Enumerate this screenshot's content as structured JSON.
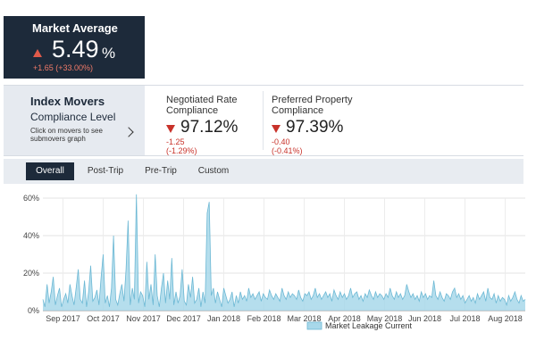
{
  "market_average": {
    "label": "Market Average",
    "value": "5.49",
    "unit": "%",
    "delta": "+1.65 (+33.00%)",
    "trend": "up"
  },
  "index_movers": {
    "title": "Index Movers",
    "subtitle": "Compliance Level",
    "hint": "Click on movers to see submovers graph",
    "icon": "chevron-right-icon"
  },
  "metrics": [
    {
      "name": "Negotiated Rate Compliance",
      "value": "97.12%",
      "delta": "-1.25 (-1.29%)",
      "trend": "down"
    },
    {
      "name": "Preferred Property Compliance",
      "value": "97.39%",
      "delta": "-0.40 (-0.41%)",
      "trend": "down"
    }
  ],
  "tabs": [
    {
      "label": "Overall",
      "active": true
    },
    {
      "label": "Post-Trip",
      "active": false
    },
    {
      "label": "Pre-Trip",
      "active": false
    },
    {
      "label": "Custom",
      "active": false
    }
  ],
  "colors": {
    "dark": "#1d2a3a",
    "up": "#e05a4a",
    "down": "#c8322a",
    "series_fill": "#a8d8ea",
    "series_line": "#6cb8d4"
  },
  "chart_data": {
    "type": "area",
    "title": "",
    "xlabel": "",
    "ylabel": "",
    "ylim": [
      0,
      60
    ],
    "y_ticks": [
      "0%",
      "20%",
      "40%",
      "60%"
    ],
    "y_tick_values": [
      0,
      20,
      40,
      60
    ],
    "x_ticks": [
      "Sep 2017",
      "Oct 2017",
      "Nov 2017",
      "Dec 2017",
      "Jan 2018",
      "Feb 2018",
      "Mar 2018",
      "Apr 2018",
      "May 2018",
      "Jun 2018",
      "Jul 2018",
      "Aug 2018"
    ],
    "legend": [
      "Market Leakage Current"
    ],
    "legend_position": "bottom",
    "grid": true,
    "series": [
      {
        "name": "Market Leakage Current",
        "values": [
          6,
          2,
          14,
          4,
          10,
          18,
          3,
          8,
          12,
          2,
          6,
          9,
          4,
          14,
          8,
          3,
          12,
          22,
          6,
          4,
          16,
          2,
          10,
          24,
          5,
          7,
          11,
          3,
          18,
          30,
          4,
          8,
          2,
          12,
          40,
          6,
          3,
          9,
          14,
          5,
          22,
          48,
          3,
          12,
          6,
          62,
          4,
          10,
          8,
          2,
          26,
          6,
          14,
          3,
          30,
          8,
          2,
          12,
          20,
          4,
          16,
          6,
          28,
          3,
          10,
          4,
          8,
          22,
          5,
          3,
          14,
          7,
          18,
          4,
          6,
          12,
          2,
          10,
          4,
          52,
          58,
          8,
          12,
          4,
          10,
          6,
          2,
          12,
          8,
          4,
          6,
          10,
          2,
          8,
          4,
          10,
          6,
          8,
          5,
          12,
          7,
          9,
          6,
          8,
          10,
          5,
          9,
          7,
          6,
          11,
          8,
          6,
          9,
          7,
          5,
          12,
          8,
          6,
          10,
          7,
          9,
          8,
          6,
          11,
          7,
          5,
          9,
          8,
          10,
          6,
          8,
          12,
          7,
          9,
          6,
          8,
          10,
          7,
          9,
          5,
          11,
          8,
          6,
          10,
          7,
          9,
          6,
          8,
          12,
          7,
          9,
          10,
          6,
          8,
          5,
          9,
          7,
          11,
          8,
          6,
          10,
          7,
          9,
          8,
          6,
          9,
          7,
          12,
          8,
          6,
          10,
          7,
          9,
          6,
          8,
          14,
          10,
          7,
          9,
          6,
          8,
          5,
          10,
          7,
          9,
          6,
          8,
          7,
          16,
          8,
          6,
          10,
          7,
          5,
          9,
          8,
          6,
          10,
          12,
          7,
          9,
          6,
          8,
          4,
          6,
          8,
          5,
          7,
          4,
          9,
          6,
          8,
          10,
          5,
          12,
          7,
          6,
          9,
          4,
          8,
          5,
          7,
          6,
          3,
          8,
          5,
          7,
          10,
          6,
          4,
          8,
          5,
          6
        ]
      }
    ]
  }
}
